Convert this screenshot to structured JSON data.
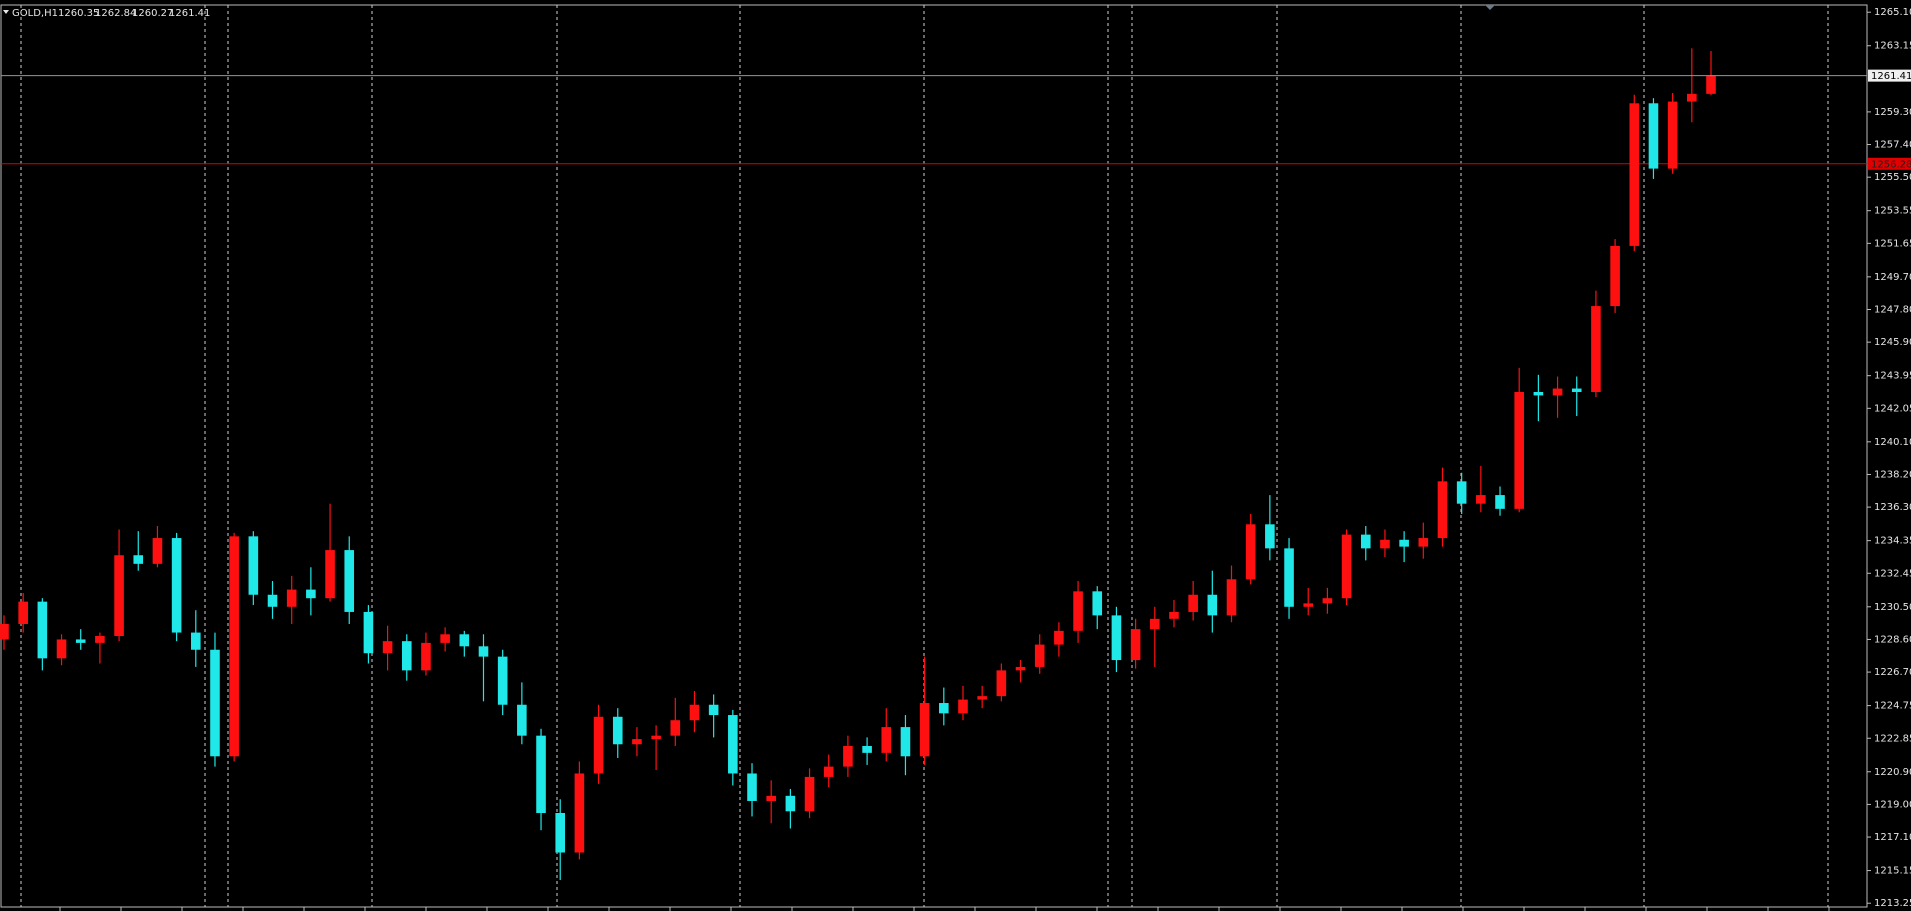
{
  "chart_data": {
    "type": "candlestick",
    "symbol": "GOLD,H1",
    "quote": [
      1260.35,
      1262.84,
      1260.27,
      1261.41
    ],
    "up_color": "#ff1010",
    "down_color": "#20e8e8",
    "ylim": [
      1213.03,
      1265.52
    ],
    "yticks": [
      {
        "value": 1265.1,
        "label": "1265.10"
      },
      1263.15,
      {
        "value": 1259.3,
        "label": "1259.30"
      },
      {
        "value": 1257.4,
        "label": "1257.40"
      },
      {
        "value": 1255.5,
        "label": "1255.50"
      },
      1253.55,
      1251.65,
      {
        "value": 1249.7,
        "label": "1249.70"
      },
      {
        "value": 1247.8,
        "label": "1247.80"
      },
      {
        "value": 1245.9,
        "label": "1245.90"
      },
      1243.95,
      1242.05,
      {
        "value": 1240.1,
        "label": "1240.10"
      },
      {
        "value": 1238.2,
        "label": "1238.20"
      },
      {
        "value": 1236.3,
        "label": "1236.30"
      },
      1234.35,
      1232.45,
      {
        "value": 1230.5,
        "label": "1230.50"
      },
      {
        "value": 1228.6,
        "label": "1228.60"
      },
      {
        "value": 1226.7,
        "label": "1226.70"
      },
      1224.75,
      1222.85,
      {
        "value": 1220.9,
        "label": "1220.90"
      },
      {
        "value": 1219.0,
        "label": "1219.00"
      },
      {
        "value": 1217.1,
        "label": "1217.10"
      },
      1215.15,
      1213.25
    ],
    "price_line": 1261.41,
    "level_line": 1256.28,
    "ohlc": [
      [
        1228.6,
        1230.0,
        1228.0,
        1229.5
      ],
      [
        1229.5,
        1231.3,
        1229.0,
        1230.8
      ],
      [
        1230.8,
        1231.0,
        1226.8,
        1227.5
      ],
      [
        1227.5,
        1228.9,
        1227.1,
        1228.6
      ],
      [
        1228.6,
        1229.2,
        1228.0,
        1228.4
      ],
      [
        1228.4,
        1229.0,
        1227.2,
        1228.8
      ],
      [
        1228.8,
        1235.0,
        1228.5,
        1233.5
      ],
      [
        1233.5,
        1234.9,
        1232.6,
        1233.0
      ],
      [
        1233.0,
        1235.2,
        1232.8,
        1234.5
      ],
      [
        1234.5,
        1234.8,
        1228.5,
        1229.0
      ],
      [
        1229.0,
        1230.3,
        1227.0,
        1228.0
      ],
      [
        1228.0,
        1229.0,
        1221.2,
        1221.8
      ],
      [
        1221.8,
        1234.8,
        1221.5,
        1234.6
      ],
      [
        1234.6,
        1234.9,
        1230.6,
        1231.2
      ],
      [
        1231.2,
        1232.0,
        1229.8,
        1230.5
      ],
      [
        1230.5,
        1232.3,
        1229.5,
        1231.5
      ],
      [
        1231.5,
        1232.8,
        1230.0,
        1231.0
      ],
      [
        1231.0,
        1236.5,
        1230.8,
        1233.8
      ],
      [
        1233.8,
        1234.6,
        1229.5,
        1230.2
      ],
      [
        1230.2,
        1230.6,
        1227.2,
        1227.8
      ],
      [
        1227.8,
        1229.4,
        1226.8,
        1228.5
      ],
      [
        1228.5,
        1228.9,
        1226.2,
        1226.8
      ],
      [
        1226.8,
        1229.0,
        1226.5,
        1228.4
      ],
      [
        1228.4,
        1229.3,
        1227.9,
        1228.9
      ],
      [
        1228.9,
        1229.1,
        1227.6,
        1228.2
      ],
      [
        1228.2,
        1228.9,
        1225.0,
        1227.6
      ],
      [
        1227.6,
        1228.0,
        1224.2,
        1224.8
      ],
      [
        1224.8,
        1226.1,
        1222.5,
        1223.0
      ],
      [
        1223.0,
        1223.4,
        1217.5,
        1218.5
      ],
      [
        1218.5,
        1219.3,
        1214.6,
        1216.2
      ],
      [
        1216.2,
        1221.5,
        1215.8,
        1220.8
      ],
      [
        1220.8,
        1224.8,
        1220.2,
        1224.1
      ],
      [
        1224.1,
        1224.6,
        1221.7,
        1222.5
      ],
      [
        1222.5,
        1223.5,
        1221.8,
        1222.8
      ],
      [
        1222.8,
        1223.6,
        1221.0,
        1223.0
      ],
      [
        1223.0,
        1225.2,
        1222.4,
        1223.9
      ],
      [
        1223.9,
        1225.6,
        1223.2,
        1224.8
      ],
      [
        1224.8,
        1225.4,
        1222.9,
        1224.2
      ],
      [
        1224.2,
        1224.5,
        1220.1,
        1220.8
      ],
      [
        1220.8,
        1221.4,
        1218.3,
        1219.2
      ],
      [
        1219.2,
        1220.4,
        1217.9,
        1219.5
      ],
      [
        1219.5,
        1219.9,
        1217.6,
        1218.6
      ],
      [
        1218.6,
        1221.1,
        1218.2,
        1220.6
      ],
      [
        1220.6,
        1221.9,
        1220.0,
        1221.2
      ],
      [
        1221.2,
        1223.0,
        1220.6,
        1222.4
      ],
      [
        1222.4,
        1222.9,
        1221.3,
        1222.0
      ],
      [
        1222.0,
        1224.6,
        1221.5,
        1223.5
      ],
      [
        1223.5,
        1224.2,
        1220.7,
        1221.8
      ],
      [
        1221.8,
        1227.6,
        1221.3,
        1224.9
      ],
      [
        1224.9,
        1225.8,
        1223.6,
        1224.3
      ],
      [
        1224.3,
        1225.9,
        1223.9,
        1225.1
      ],
      [
        1225.1,
        1225.9,
        1224.6,
        1225.3
      ],
      [
        1225.3,
        1227.2,
        1225.0,
        1226.8
      ],
      [
        1226.8,
        1227.4,
        1226.1,
        1227.0
      ],
      [
        1227.0,
        1228.9,
        1226.6,
        1228.3
      ],
      [
        1228.3,
        1229.6,
        1227.6,
        1229.1
      ],
      [
        1229.1,
        1232.0,
        1228.4,
        1231.4
      ],
      [
        1231.4,
        1231.7,
        1229.2,
        1230.0
      ],
      [
        1230.0,
        1230.5,
        1226.7,
        1227.4
      ],
      [
        1227.4,
        1229.8,
        1226.9,
        1229.2
      ],
      [
        1229.2,
        1230.5,
        1227.0,
        1229.8
      ],
      [
        1229.8,
        1230.9,
        1229.3,
        1230.2
      ],
      [
        1230.2,
        1232.0,
        1229.7,
        1231.2
      ],
      [
        1231.2,
        1232.6,
        1229.0,
        1230.0
      ],
      [
        1230.0,
        1232.9,
        1229.6,
        1232.1
      ],
      [
        1232.1,
        1235.9,
        1231.8,
        1235.3
      ],
      [
        1235.3,
        1237.0,
        1233.2,
        1233.9
      ],
      [
        1233.9,
        1234.5,
        1229.8,
        1230.5
      ],
      [
        1230.5,
        1231.6,
        1230.0,
        1230.7
      ],
      [
        1230.7,
        1231.6,
        1230.1,
        1231.0
      ],
      [
        1231.0,
        1235.0,
        1230.6,
        1234.7
      ],
      [
        1234.7,
        1235.2,
        1233.2,
        1233.9
      ],
      [
        1233.9,
        1235.0,
        1233.4,
        1234.4
      ],
      [
        1234.4,
        1234.9,
        1233.1,
        1234.0
      ],
      [
        1234.0,
        1235.4,
        1233.3,
        1234.5
      ],
      [
        1234.5,
        1238.6,
        1234.0,
        1237.8
      ],
      [
        1237.8,
        1238.3,
        1235.9,
        1236.5
      ],
      [
        1236.5,
        1238.7,
        1236.0,
        1237.0
      ],
      [
        1237.0,
        1237.5,
        1235.8,
        1236.2
      ],
      [
        1236.2,
        1244.4,
        1236.0,
        1243.0
      ],
      [
        1243.0,
        1244.0,
        1241.3,
        1242.8
      ],
      [
        1242.8,
        1243.9,
        1241.5,
        1243.2
      ],
      [
        1243.2,
        1243.9,
        1241.6,
        1243.0
      ],
      [
        1243.0,
        1248.9,
        1242.7,
        1248.0
      ],
      [
        1248.0,
        1251.9,
        1247.6,
        1251.5
      ],
      [
        1251.5,
        1260.3,
        1251.2,
        1259.8
      ],
      [
        1259.8,
        1260.1,
        1255.4,
        1256.0
      ],
      [
        1256.0,
        1260.4,
        1255.7,
        1259.9
      ],
      [
        1259.9,
        1263.0,
        1258.7,
        1260.35
      ],
      [
        1260.35,
        1262.84,
        1260.27,
        1261.41
      ]
    ]
  }
}
